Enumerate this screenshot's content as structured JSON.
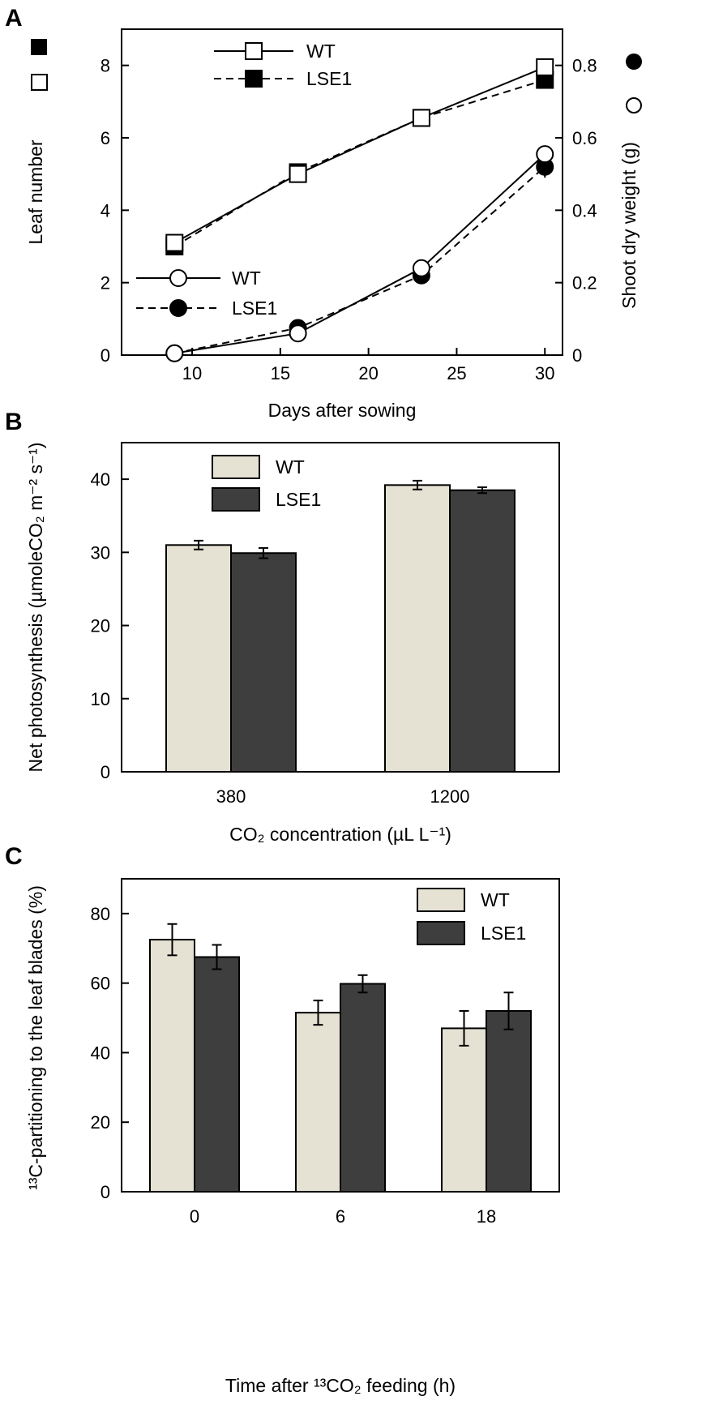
{
  "colors": {
    "wt_bar": "#e6e2d3",
    "lse1_bar": "#3e3e3e",
    "outline": "#000000",
    "background": "#ffffff"
  },
  "chart_data": [
    {
      "panel": "A",
      "type": "line",
      "title": "",
      "xlabel": "Days after sowing",
      "ylabel_left": "Leaf number",
      "ylabel_right": "Shoot dry weight (g)",
      "left_axis_markers": [
        "filled-square",
        "open-square"
      ],
      "right_axis_markers": [
        "filled-circle",
        "open-circle"
      ],
      "xlim": [
        6,
        31
      ],
      "ylim_left": [
        0,
        9
      ],
      "ylim_right": [
        0,
        0.9
      ],
      "xticks": [
        10,
        15,
        20,
        25,
        30
      ],
      "yticks_left": [
        0,
        2,
        4,
        6,
        8
      ],
      "yticks_right": [
        0,
        0.2,
        0.4,
        0.6,
        0.8
      ],
      "ytick_labels_right": [
        "0",
        "0.2",
        "0.4",
        "0.6",
        "0.8"
      ],
      "x": [
        9,
        16,
        23,
        30
      ],
      "series": [
        {
          "name": "WT",
          "axis": "left",
          "marker": "open-square",
          "line": "solid",
          "values": [
            3.1,
            5.0,
            6.55,
            7.95
          ]
        },
        {
          "name": "LSE1",
          "axis": "left",
          "marker": "filled-square",
          "line": "dashed",
          "values": [
            3.0,
            5.05,
            6.55,
            7.6
          ]
        },
        {
          "name": "WT",
          "axis": "right",
          "marker": "open-circle",
          "line": "solid",
          "values": [
            0.005,
            0.06,
            0.24,
            0.555
          ],
          "errors": [
            0,
            0,
            0,
            0.02
          ]
        },
        {
          "name": "LSE1",
          "axis": "right",
          "marker": "filled-circle",
          "line": "dashed",
          "values": [
            0.005,
            0.075,
            0.22,
            0.52
          ],
          "errors": [
            0,
            0,
            0.01,
            0.03
          ]
        }
      ],
      "legends": [
        {
          "position": "top-center",
          "entries": [
            "WT",
            "LSE1"
          ]
        },
        {
          "position": "center-left",
          "entries": [
            "WT",
            "LSE1"
          ]
        }
      ]
    },
    {
      "panel": "B",
      "type": "bar",
      "title": "",
      "xlabel": "CO₂ concentration (µL L⁻¹)",
      "ylabel": "Net photosynthesis (µmoleCO₂ m⁻² s⁻¹)",
      "ylim": [
        0,
        45
      ],
      "yticks": [
        0,
        10,
        20,
        30,
        40
      ],
      "categories": [
        "380",
        "1200"
      ],
      "series": [
        {
          "name": "WT",
          "values": [
            31.0,
            39.2
          ],
          "errors": [
            0.6,
            0.6
          ]
        },
        {
          "name": "LSE1",
          "values": [
            29.9,
            38.5
          ],
          "errors": [
            0.7,
            0.4
          ]
        }
      ],
      "legend": "top-left"
    },
    {
      "panel": "C",
      "type": "bar",
      "title": "",
      "xlabel": "Time after ¹³CO₂ feeding (h)",
      "ylabel": "¹³C-partitioning to the leaf blades (%)",
      "ylim": [
        0,
        90
      ],
      "yticks": [
        0,
        20,
        40,
        60,
        80
      ],
      "categories": [
        "0",
        "6",
        "18"
      ],
      "series": [
        {
          "name": "WT",
          "values": [
            72.5,
            51.5,
            47.0
          ],
          "errors": [
            4.5,
            3.5,
            5.0
          ]
        },
        {
          "name": "LSE1",
          "values": [
            67.5,
            59.8,
            52.0
          ],
          "errors": [
            3.5,
            2.5,
            5.3
          ]
        }
      ],
      "legend": "top-right"
    }
  ]
}
